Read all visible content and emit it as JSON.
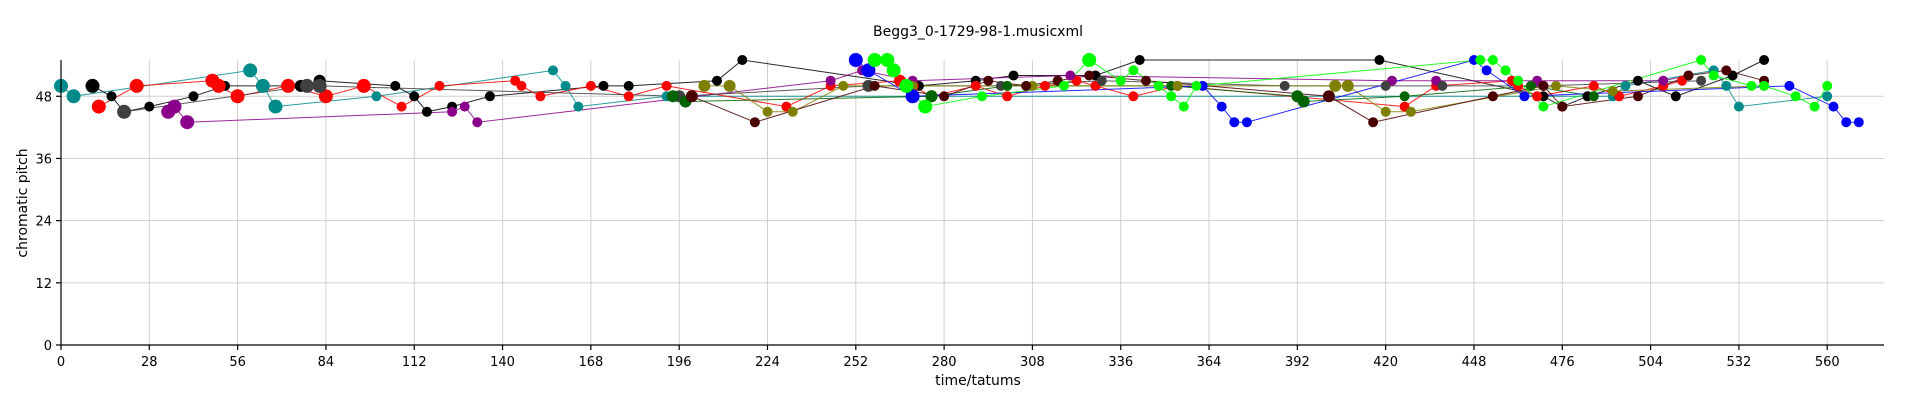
{
  "chart_data": {
    "type": "scatter",
    "title": "Begg3_0-1729-98-1.musicxml",
    "xlabel": "time/tatums",
    "ylabel": "chromatic pitch",
    "xlim": [
      0,
      578
    ],
    "ylim": [
      0,
      55
    ],
    "xticks": [
      0,
      28,
      56,
      84,
      112,
      140,
      168,
      196,
      224,
      252,
      280,
      308,
      336,
      364,
      392,
      420,
      448,
      476,
      504,
      532,
      560
    ],
    "yticks": [
      0,
      12,
      24,
      36,
      48
    ],
    "grid": true,
    "series": [
      {
        "color": "#008b8b",
        "lines": true,
        "points": [
          [
            0,
            50,
            7
          ],
          [
            4,
            48,
            7
          ],
          [
            60,
            53,
            7
          ],
          [
            64,
            50,
            7
          ],
          [
            68,
            46,
            7
          ],
          [
            100,
            48,
            5
          ],
          [
            156,
            53,
            5
          ],
          [
            160,
            50,
            5
          ],
          [
            164,
            46,
            5
          ],
          [
            192,
            48,
            5
          ],
          [
            492,
            48,
            5
          ],
          [
            496,
            50,
            5
          ],
          [
            524,
            53,
            5
          ],
          [
            528,
            50,
            5
          ],
          [
            532,
            46,
            5
          ],
          [
            560,
            48,
            5
          ]
        ]
      },
      {
        "color": "#000000",
        "lines": true,
        "points": [
          [
            10,
            50,
            7
          ],
          [
            16,
            48,
            5
          ],
          [
            20,
            45,
            6
          ],
          [
            28,
            46,
            5
          ],
          [
            42,
            48,
            5
          ],
          [
            52,
            50,
            5
          ],
          [
            76,
            50,
            6
          ],
          [
            82,
            51,
            6
          ],
          [
            106,
            50,
            5
          ],
          [
            112,
            48,
            5
          ],
          [
            116,
            45,
            5
          ],
          [
            124,
            46,
            5
          ],
          [
            136,
            48,
            5
          ],
          [
            172,
            50,
            5
          ],
          [
            180,
            50,
            5
          ],
          [
            208,
            51,
            5
          ],
          [
            216,
            55,
            5
          ],
          [
            272,
            50,
            5
          ],
          [
            290,
            51,
            5
          ],
          [
            302,
            52,
            5
          ],
          [
            328,
            52,
            5
          ],
          [
            342,
            55,
            5
          ],
          [
            418,
            55,
            5
          ],
          [
            470,
            48,
            5
          ],
          [
            476,
            46,
            5
          ],
          [
            484,
            48,
            5
          ],
          [
            500,
            51,
            5
          ],
          [
            512,
            48,
            5
          ],
          [
            530,
            52,
            5
          ],
          [
            540,
            55,
            5
          ]
        ]
      },
      {
        "color": "#ff0000",
        "lines": true,
        "points": [
          [
            12,
            46,
            7
          ],
          [
            24,
            50,
            7
          ],
          [
            48,
            51,
            7
          ],
          [
            50,
            50,
            7
          ],
          [
            56,
            48,
            7
          ],
          [
            72,
            50,
            7
          ],
          [
            84,
            48,
            7
          ],
          [
            96,
            50,
            7
          ],
          [
            108,
            46,
            5
          ],
          [
            120,
            50,
            5
          ],
          [
            144,
            51,
            5
          ],
          [
            146,
            50,
            5
          ],
          [
            152,
            48,
            5
          ],
          [
            168,
            50,
            5
          ],
          [
            180,
            48,
            5
          ],
          [
            192,
            50,
            5
          ],
          [
            230,
            46,
            5
          ],
          [
            244,
            50,
            5
          ],
          [
            266,
            51,
            6
          ],
          [
            270,
            50,
            6
          ],
          [
            276,
            48,
            6
          ],
          [
            290,
            50,
            5
          ],
          [
            300,
            48,
            5
          ],
          [
            312,
            50,
            5
          ],
          [
            322,
            51,
            5
          ],
          [
            328,
            50,
            5
          ],
          [
            340,
            48,
            5
          ],
          [
            354,
            50,
            5
          ],
          [
            426,
            46,
            5
          ],
          [
            436,
            50,
            5
          ],
          [
            460,
            51,
            5
          ],
          [
            462,
            50,
            5
          ],
          [
            468,
            48,
            5
          ],
          [
            486,
            50,
            5
          ],
          [
            494,
            48,
            5
          ],
          [
            508,
            50,
            5
          ],
          [
            514,
            51,
            5
          ]
        ]
      },
      {
        "color": "#8b008b",
        "lines": true,
        "points": [
          [
            34,
            45,
            7
          ],
          [
            36,
            46,
            7
          ],
          [
            40,
            43,
            7
          ],
          [
            124,
            45,
            5
          ],
          [
            128,
            46,
            5
          ],
          [
            132,
            43,
            5
          ],
          [
            244,
            51,
            5
          ],
          [
            254,
            53,
            5
          ],
          [
            270,
            51,
            5
          ],
          [
            320,
            52,
            5
          ],
          [
            422,
            51,
            5
          ],
          [
            436,
            51,
            5
          ],
          [
            468,
            51,
            5
          ],
          [
            508,
            51,
            5
          ],
          [
            516,
            52,
            5
          ]
        ]
      },
      {
        "color": "#404040",
        "lines": true,
        "points": [
          [
            20,
            45,
            7
          ],
          [
            78,
            50,
            7
          ],
          [
            82,
            50,
            7
          ],
          [
            196,
            48,
            6
          ],
          [
            256,
            50,
            6
          ],
          [
            298,
            50,
            5
          ],
          [
            330,
            51,
            5
          ],
          [
            388,
            50,
            5
          ],
          [
            420,
            50,
            5
          ],
          [
            438,
            50,
            5
          ],
          [
            470,
            50,
            5
          ],
          [
            520,
            51,
            5
          ]
        ]
      },
      {
        "color": "#006400",
        "lines": true,
        "points": [
          [
            194,
            48,
            6
          ],
          [
            198,
            47,
            6
          ],
          [
            276,
            48,
            6
          ],
          [
            300,
            50,
            5
          ],
          [
            352,
            50,
            5
          ],
          [
            392,
            48,
            6
          ],
          [
            394,
            47,
            6
          ],
          [
            426,
            48,
            5
          ],
          [
            466,
            50,
            5
          ],
          [
            486,
            48,
            5
          ]
        ]
      },
      {
        "color": "#808000",
        "lines": true,
        "points": [
          [
            204,
            50,
            6
          ],
          [
            212,
            50,
            6
          ],
          [
            224,
            45,
            5
          ],
          [
            232,
            45,
            5
          ],
          [
            248,
            50,
            5
          ],
          [
            270,
            50,
            5
          ],
          [
            308,
            50,
            5
          ],
          [
            354,
            50,
            5
          ],
          [
            404,
            50,
            6
          ],
          [
            408,
            50,
            6
          ],
          [
            420,
            45,
            5
          ],
          [
            428,
            45,
            5
          ],
          [
            474,
            50,
            5
          ],
          [
            492,
            49,
            5
          ],
          [
            540,
            50,
            5
          ]
        ]
      },
      {
        "color": "#4b0000",
        "lines": true,
        "points": [
          [
            200,
            48,
            6
          ],
          [
            220,
            43,
            5
          ],
          [
            258,
            50,
            5
          ],
          [
            280,
            48,
            5
          ],
          [
            294,
            51,
            5
          ],
          [
            306,
            50,
            5
          ],
          [
            316,
            51,
            5
          ],
          [
            326,
            52,
            5
          ],
          [
            344,
            51,
            5
          ],
          [
            402,
            48,
            6
          ],
          [
            416,
            43,
            5
          ],
          [
            454,
            48,
            5
          ],
          [
            470,
            50,
            5
          ],
          [
            476,
            46,
            5
          ],
          [
            500,
            48,
            5
          ],
          [
            516,
            52,
            5
          ],
          [
            528,
            53,
            5
          ],
          [
            540,
            51,
            5
          ]
        ]
      },
      {
        "color": "#0000ff",
        "lines": true,
        "points": [
          [
            252,
            55,
            7
          ],
          [
            256,
            53,
            7
          ],
          [
            270,
            48,
            7
          ],
          [
            362,
            50,
            5
          ],
          [
            368,
            46,
            5
          ],
          [
            372,
            43,
            5
          ],
          [
            376,
            43,
            5
          ],
          [
            448,
            55,
            5
          ],
          [
            452,
            53,
            5
          ],
          [
            464,
            48,
            5
          ],
          [
            548,
            50,
            5
          ],
          [
            562,
            46,
            5
          ],
          [
            566,
            43,
            5
          ],
          [
            570,
            43,
            5
          ]
        ]
      },
      {
        "color": "#00ff00",
        "lines": true,
        "points": [
          [
            258,
            55,
            7
          ],
          [
            262,
            55,
            7
          ],
          [
            264,
            53,
            7
          ],
          [
            268,
            50,
            7
          ],
          [
            274,
            46,
            7
          ],
          [
            292,
            48,
            5
          ],
          [
            318,
            50,
            5
          ],
          [
            326,
            55,
            7
          ],
          [
            336,
            51,
            5
          ],
          [
            340,
            53,
            5
          ],
          [
            348,
            50,
            5
          ],
          [
            352,
            48,
            5
          ],
          [
            356,
            46,
            5
          ],
          [
            360,
            50,
            5
          ],
          [
            450,
            55,
            5
          ],
          [
            454,
            55,
            5
          ],
          [
            458,
            53,
            5
          ],
          [
            462,
            51,
            5
          ],
          [
            470,
            46,
            5
          ],
          [
            520,
            55,
            5
          ],
          [
            524,
            52,
            5
          ],
          [
            536,
            50,
            5
          ],
          [
            540,
            50,
            5
          ],
          [
            550,
            48,
            5
          ],
          [
            556,
            46,
            5
          ],
          [
            560,
            50,
            5
          ]
        ]
      }
    ]
  }
}
